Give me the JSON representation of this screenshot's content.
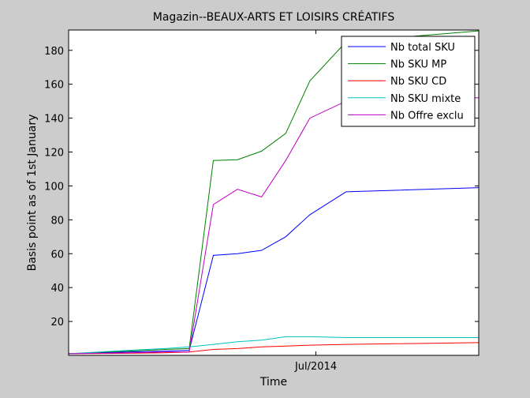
{
  "chart_data": {
    "type": "line",
    "title": "Magazin--BEAUX-ARTS ET LOISIRS CRÉATIFS",
    "xlabel": "Time",
    "ylabel": "Basis point as of 1st January",
    "ylim": [
      0,
      192
    ],
    "xlim": [
      0,
      34
    ],
    "xtick_labels": [
      "Jul/2014"
    ],
    "xtick_positions": [
      20.5
    ],
    "ytick_values": [
      20,
      40,
      60,
      80,
      100,
      120,
      140,
      160,
      180
    ],
    "legend_position": "top-right",
    "grid": false,
    "x": [
      0,
      5,
      8,
      10,
      12,
      14,
      16,
      18,
      20,
      23,
      34
    ],
    "series": [
      {
        "name": "Nb total SKU",
        "color": "#0000ff",
        "values": [
          1,
          2,
          2.5,
          3,
          59,
          60,
          62,
          70,
          83,
          96.5,
          99
        ]
      },
      {
        "name": "Nb SKU MP",
        "color": "#008000",
        "values": [
          1,
          2.5,
          3.5,
          4,
          115,
          115.5,
          120.5,
          131,
          162,
          185,
          191.5
        ]
      },
      {
        "name": "Nb SKU CD",
        "color": "#ff0000",
        "values": [
          1,
          1.2,
          1.5,
          2,
          3.5,
          4,
          5,
          5.5,
          6,
          6.5,
          7.5
        ]
      },
      {
        "name": "Nb SKU mixte",
        "color": "#00bfbf",
        "values": [
          1,
          3,
          4,
          5,
          6.5,
          8,
          9,
          11,
          11,
          10.5,
          10.5
        ]
      },
      {
        "name": "Nb Offre exclu",
        "color": "#bf00bf",
        "values": [
          1,
          1.5,
          2,
          2,
          89,
          98,
          93.5,
          115,
          140,
          150,
          152
        ]
      }
    ]
  }
}
